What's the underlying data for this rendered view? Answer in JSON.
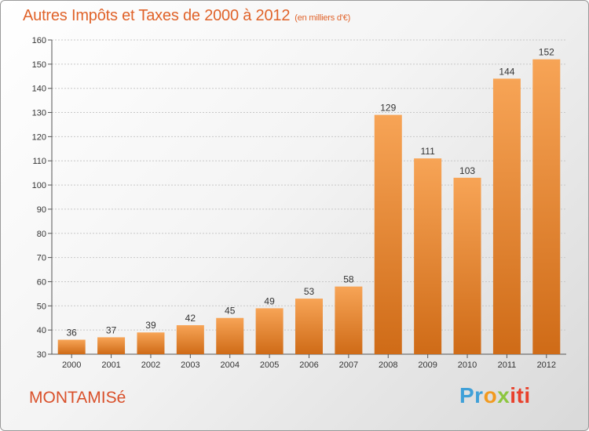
{
  "title": "Autres Impôts et Taxes de 2000 à 2012",
  "subtitle": "(en milliers d'€)",
  "commune": "MONTAMISé",
  "logo": {
    "p1": "Pr",
    "p2": "o",
    "p3": "x",
    "p4": "iti"
  },
  "colors": {
    "bar_top": "#f7a456",
    "bar_bottom": "#cf6b17",
    "title": "#e0632a"
  },
  "chart_data": {
    "type": "bar",
    "categories": [
      "2000",
      "2001",
      "2002",
      "2003",
      "2004",
      "2005",
      "2006",
      "2007",
      "2008",
      "2009",
      "2010",
      "2011",
      "2012"
    ],
    "values": [
      36,
      37,
      39,
      42,
      45,
      49,
      53,
      58,
      129,
      111,
      103,
      144,
      152
    ],
    "ylim": [
      30,
      160
    ],
    "yticks": [
      30,
      40,
      50,
      60,
      70,
      80,
      90,
      100,
      110,
      120,
      130,
      140,
      150,
      160
    ],
    "grid": true,
    "title": "Autres Impôts et Taxes de 2000 à 2012",
    "xlabel": "",
    "ylabel": ""
  }
}
